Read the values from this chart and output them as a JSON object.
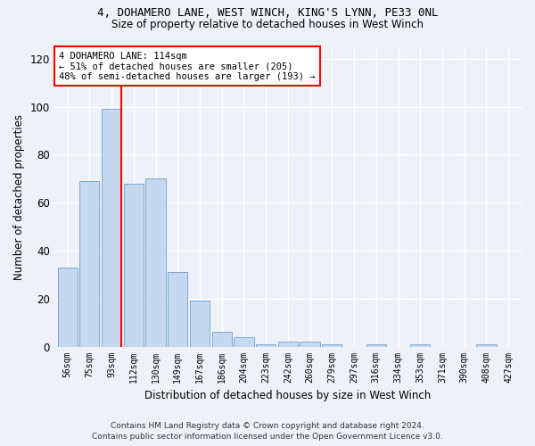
{
  "title_line1": "4, DOHAMERO LANE, WEST WINCH, KING'S LYNN, PE33 0NL",
  "title_line2": "Size of property relative to detached houses in West Winch",
  "xlabel": "Distribution of detached houses by size in West Winch",
  "ylabel": "Number of detached properties",
  "bar_color": "#c5d8f0",
  "bar_edge_color": "#7aaad4",
  "categories": [
    "56sqm",
    "75sqm",
    "93sqm",
    "112sqm",
    "130sqm",
    "149sqm",
    "167sqm",
    "186sqm",
    "204sqm",
    "223sqm",
    "242sqm",
    "260sqm",
    "279sqm",
    "297sqm",
    "316sqm",
    "334sqm",
    "353sqm",
    "371sqm",
    "390sqm",
    "408sqm",
    "427sqm"
  ],
  "values": [
    33,
    69,
    99,
    68,
    70,
    31,
    19,
    6,
    4,
    1,
    2,
    2,
    1,
    0,
    1,
    0,
    1,
    0,
    0,
    1,
    0
  ],
  "ylim": [
    0,
    125
  ],
  "yticks": [
    0,
    20,
    40,
    60,
    80,
    100,
    120
  ],
  "annotation_box_text": "4 DOHAMERO LANE: 114sqm\n← 51% of detached houses are smaller (205)\n48% of semi-detached houses are larger (193) →",
  "footer_line1": "Contains HM Land Registry data © Crown copyright and database right 2024.",
  "footer_line2": "Contains public sector information licensed under the Open Government Licence v3.0.",
  "background_color": "#eef2f8",
  "plot_bg_color": "#eef2f8",
  "grid_color": "#ffffff",
  "red_line_index": 2
}
